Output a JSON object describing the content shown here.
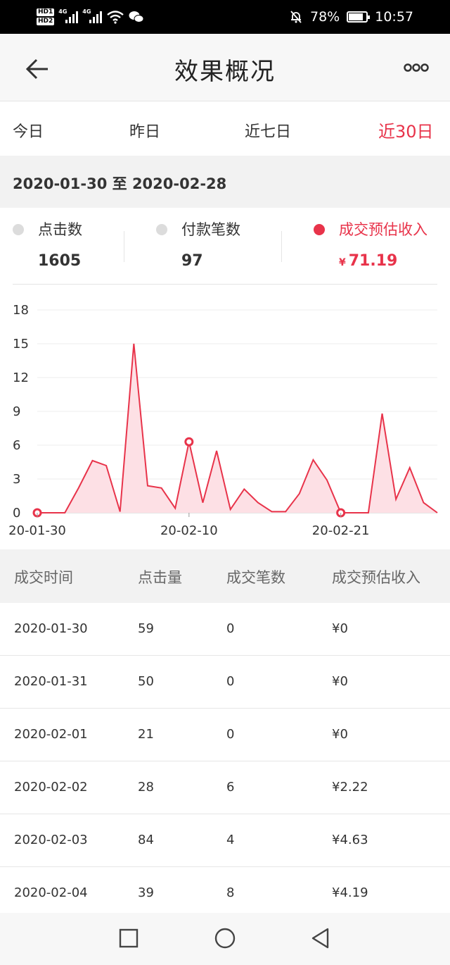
{
  "status_bar": {
    "hd1": "HD1",
    "hd2": "HD2",
    "net1": "4G",
    "net2": "4G",
    "battery_percent": "78%",
    "time": "10:57"
  },
  "header": {
    "title": "效果概况"
  },
  "range_tabs": [
    {
      "label": "今日",
      "active": false
    },
    {
      "label": "昨日",
      "active": false
    },
    {
      "label": "近七日",
      "active": false
    },
    {
      "label": "近30日",
      "active": true
    }
  ],
  "date_range": "2020-01-30 至 2020-02-28",
  "metrics": [
    {
      "label": "点击数",
      "value": "1605",
      "active": false
    },
    {
      "label": "付款笔数",
      "value": "97",
      "active": false
    },
    {
      "label": "成交预估收入",
      "currency": "¥",
      "value": "71.19",
      "active": true
    }
  ],
  "accent_color": "#e8334a",
  "chart_data": {
    "type": "area",
    "title": "",
    "xlabel": "",
    "ylabel": "",
    "ylim": [
      0,
      18
    ],
    "yticks": [
      "0",
      "3",
      "6",
      "9",
      "12",
      "15",
      "18"
    ],
    "xtick_labels": [
      "20-01-30",
      "20-02-10",
      "20-02-21"
    ],
    "x": [
      "2020-01-30",
      "2020-01-31",
      "2020-02-01",
      "2020-02-02",
      "2020-02-03",
      "2020-02-04",
      "2020-02-05",
      "2020-02-06",
      "2020-02-07",
      "2020-02-08",
      "2020-02-09",
      "2020-02-10",
      "2020-02-11",
      "2020-02-12",
      "2020-02-13",
      "2020-02-14",
      "2020-02-15",
      "2020-02-16",
      "2020-02-17",
      "2020-02-18",
      "2020-02-19",
      "2020-02-20",
      "2020-02-21",
      "2020-02-22",
      "2020-02-23",
      "2020-02-24",
      "2020-02-25",
      "2020-02-26",
      "2020-02-27",
      "2020-02-28"
    ],
    "series": [
      {
        "values": [
          0,
          0,
          0,
          2.22,
          4.63,
          4.19,
          0.1,
          15,
          2.4,
          2.2,
          0.4,
          6.3,
          0.9,
          5.5,
          0.3,
          2.1,
          0.9,
          0.1,
          0.1,
          1.7,
          4.7,
          2.9,
          0,
          0,
          0,
          8.8,
          1.2,
          4.0,
          0.9,
          0
        ]
      }
    ],
    "highlight_points": [
      0,
      11,
      22
    ],
    "color": "#e8334a",
    "fill": "#fde0e5",
    "grid": true
  },
  "table": {
    "headers": [
      "成交时间",
      "点击量",
      "成交笔数",
      "成交预估收入"
    ],
    "rows": [
      [
        "2020-01-30",
        "59",
        "0",
        "¥0"
      ],
      [
        "2020-01-31",
        "50",
        "0",
        "¥0"
      ],
      [
        "2020-02-01",
        "21",
        "0",
        "¥0"
      ],
      [
        "2020-02-02",
        "28",
        "6",
        "¥2.22"
      ],
      [
        "2020-02-03",
        "84",
        "4",
        "¥4.63"
      ],
      [
        "2020-02-04",
        "39",
        "8",
        "¥4.19"
      ]
    ]
  }
}
